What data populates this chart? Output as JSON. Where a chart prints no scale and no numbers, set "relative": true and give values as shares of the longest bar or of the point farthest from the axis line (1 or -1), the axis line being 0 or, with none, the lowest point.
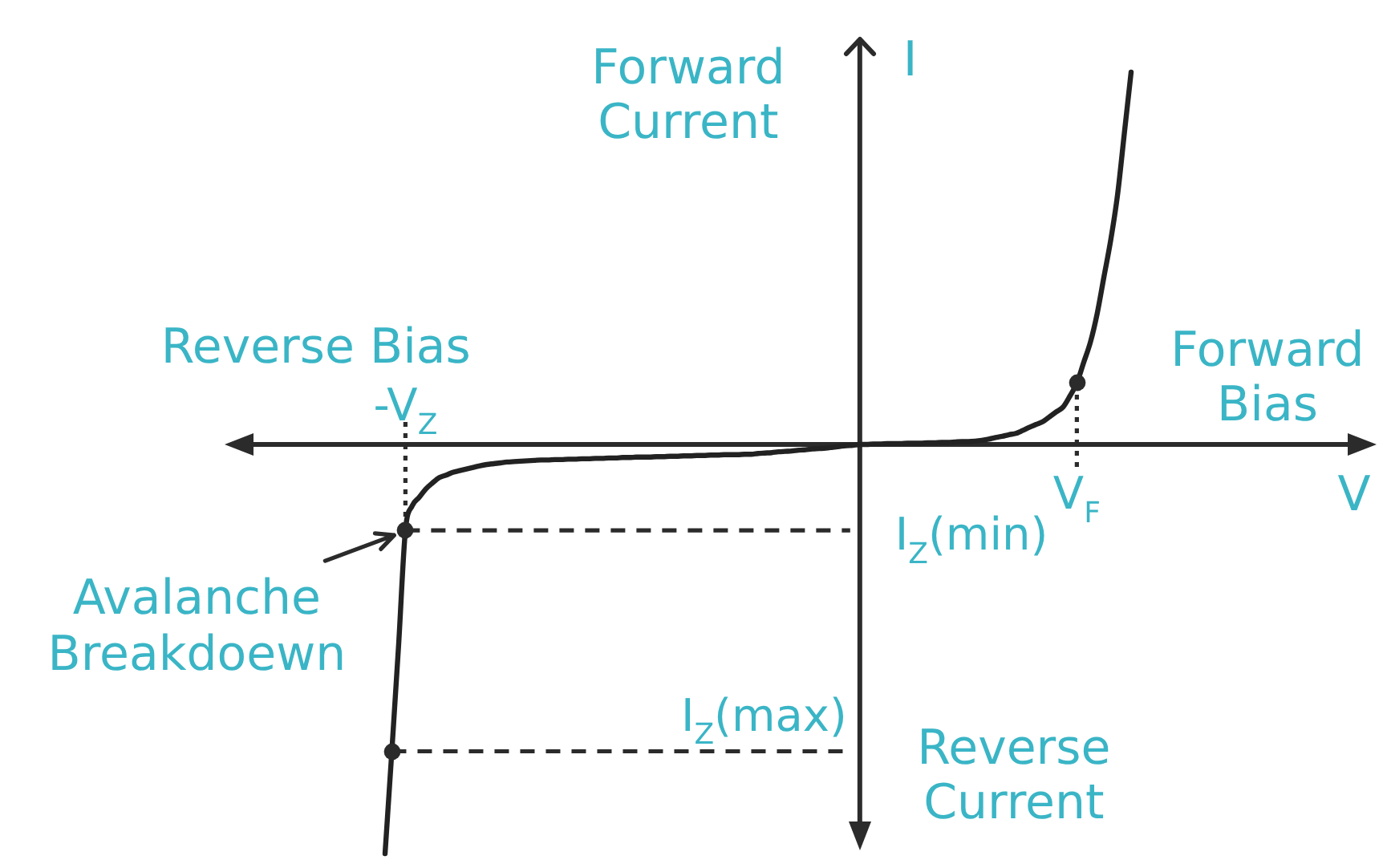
{
  "chart_data": {
    "type": "line",
    "relative": true,
    "xlabel": "V",
    "ylabel": "I",
    "categories": [
      null,
      null,
      null,
      "-V$_{Z}$",
      null,
      null,
      null,
      null,
      null,
      null,
      null,
      null,
      null,
      null,
      null,
      null,
      null,
      null,
      null,
      null,
      null,
      null,
      null,
      null,
      null,
      null,
      null,
      null,
      null,
      null,
      null,
      null,
      null,
      null,
      null,
      null,
      null,
      null,
      null,
      null,
      null,
      null,
      null,
      null,
      null,
      null,
      null,
      null,
      null,
      null,
      null,
      null,
      null,
      null,
      null,
      null,
      null,
      null,
      null,
      null,
      null,
      null,
      null,
      null,
      null,
      null,
      null,
      null,
      null,
      null,
      null,
      null,
      null,
      null,
      null,
      null,
      null,
      null,
      null,
      null,
      null,
      null,
      null,
      null,
      null,
      null,
      null,
      null,
      null,
      null,
      null,
      null,
      null,
      null,
      null,
      null,
      null,
      null,
      null,
      null,
      null,
      null,
      "V$_{F}$",
      null,
      null,
      null,
      null,
      null,
      null,
      null,
      null
    ],
    "series": [
      {
        "color": "#222222",
        "values": [
          -1,
          -0.75,
          -0.49,
          -0.21,
          -0.15,
          -0.13,
          -0.109,
          -0.094,
          -0.081,
          -0.075,
          -0.068,
          -0.064,
          -0.06,
          -0.056,
          -0.052,
          -0.049,
          -0.047,
          -0.045,
          -0.043,
          -0.042,
          -0.041,
          -0.04,
          -0.039,
          -0.038,
          -0.038,
          -0.037,
          -0.037,
          -0.036,
          -0.036,
          -0.035,
          -0.035,
          -0.034,
          -0.034,
          -0.033,
          -0.033,
          -0.032,
          -0.032,
          -0.031,
          -0.031,
          -0.031,
          -0.03,
          -0.03,
          -0.029,
          -0.029,
          -0.028,
          -0.028,
          -0.027,
          -0.027,
          -0.026,
          -0.026,
          -0.025,
          -0.025,
          -0.025,
          -0.024,
          -0.024,
          -0.022,
          -0.021,
          -0.02,
          -0.018,
          -0.017,
          -0.016,
          -0.014,
          -0.013,
          -0.011,
          -0.01,
          -0.009,
          -0.007,
          -0.005,
          -0.003,
          -0.002,
          0,
          0,
          0.001,
          0.001,
          0.002,
          0.002,
          0.002,
          0.003,
          0.003,
          0.003,
          0.004,
          0.004,
          0.005,
          0.005,
          0.006,
          0.007,
          0.007,
          0.008,
          0.01,
          0.013,
          0.017,
          0.02,
          0.024,
          0.027,
          0.034,
          0.042,
          0.049,
          0.056,
          0.068,
          0.08,
          0.092,
          0.119,
          0.15,
          0.2,
          0.25,
          0.32,
          0.41,
          0.5,
          0.61,
          0.76,
          0.91
        ]
      }
    ],
    "ref_lines": [
      {
        "axis": "x",
        "value": "-V$_{Z}$",
        "line_style": "dotted"
      },
      {
        "axis": "x",
        "value": "V$_{F}$",
        "line_style": "dotted"
      },
      {
        "axis": "y",
        "value": -0.21,
        "label": "I$_{Z}$(min)",
        "line_style": "dashed"
      },
      {
        "axis": "y",
        "value": -0.75,
        "label": "I$_{Z}$(max)",
        "line_style": "dashed"
      }
    ],
    "annotations": [
      "Forward Current",
      "Reverse Current",
      "Reverse Bias",
      "Forward Bias",
      {
        "text": "Avalanche Breakdoewn",
        "x": "-V$_{Z}$",
        "y": -0.21
      }
    ]
  }
}
